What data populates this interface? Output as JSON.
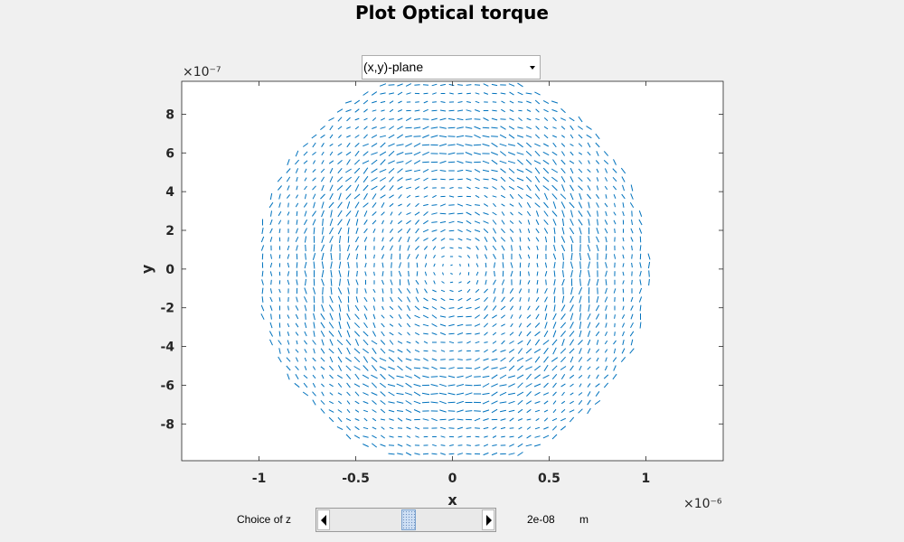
{
  "window": {
    "title": "Plot Optical torque"
  },
  "plane_selector": {
    "value": "(x,y)-plane"
  },
  "z_control": {
    "label": "Choice of z",
    "value": "2e-08",
    "unit": "m",
    "slider_fraction": 0.52
  },
  "chart_data": {
    "type": "quiver",
    "title": "Plot Optical torque",
    "xlabel": "x",
    "ylabel": "y",
    "x_exponent": "×10⁻⁶",
    "y_exponent": "×10⁻⁷",
    "xlim": [
      -1.4,
      1.4
    ],
    "ylim": [
      -9.9,
      9.7
    ],
    "x_ticks": [
      -1,
      -0.5,
      0,
      0.5,
      1
    ],
    "x_tick_labels": [
      "-1",
      "-0.5",
      "0",
      "0.5",
      "1"
    ],
    "y_ticks": [
      -8,
      -6,
      -4,
      -2,
      0,
      2,
      4,
      6,
      8
    ],
    "y_tick_labels": [
      "-8",
      "-6",
      "-4",
      "-2",
      "0",
      "2",
      "4",
      "6",
      "8"
    ],
    "field_region": {
      "shape": "disk",
      "center": [
        0,
        0
      ],
      "radius_x": 1.0,
      "radius_y": 10.0
    },
    "grid": false,
    "color": "#0072bd"
  },
  "colors": {
    "background": "#f0f0f0",
    "axes_background": "#ffffff",
    "arrow": "#0072bd",
    "tick_text": "#262626"
  }
}
